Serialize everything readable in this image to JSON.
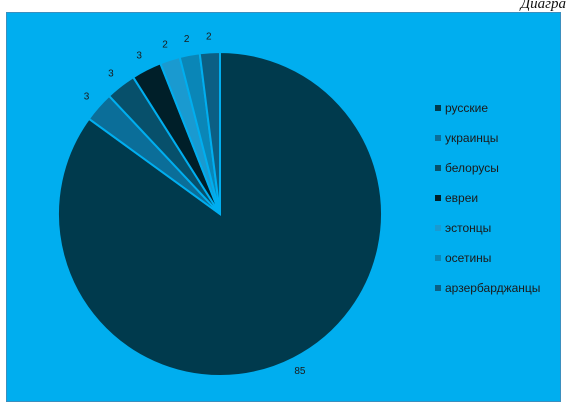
{
  "page": {
    "corner_text": "Диагра"
  },
  "chart_data": {
    "type": "pie",
    "title": "",
    "background": "#00aeef",
    "legend_position": "right",
    "categories": [
      "русские",
      "украинцы",
      "белорусы",
      "евреи",
      "эстонцы",
      "осетины",
      "арзербарджанцы"
    ],
    "values": [
      85,
      3,
      3,
      3,
      2,
      2,
      2
    ],
    "data_labels": [
      "85",
      "3",
      "3",
      "3",
      "2",
      "2",
      "2"
    ],
    "colors": [
      "#003a4d",
      "#0b6e99",
      "#07506b",
      "#001f29",
      "#1a9ad0",
      "#0a86b7",
      "#0b5f84"
    ],
    "slice_border": "#00aeef"
  }
}
